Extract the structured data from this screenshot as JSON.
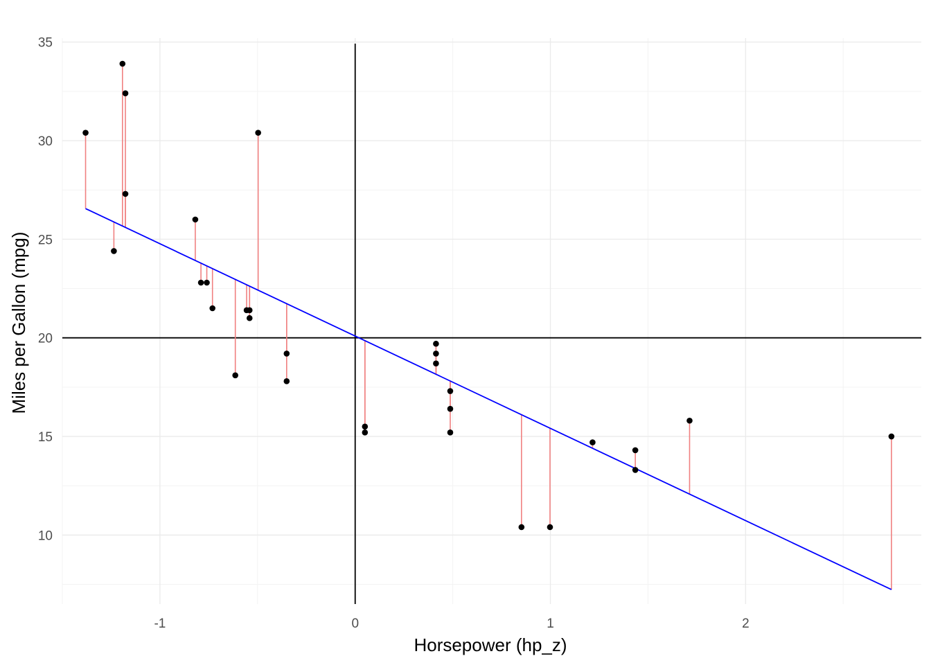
{
  "chart_data": {
    "type": "scatter",
    "xlabel": "Horsepower (hp_z)",
    "ylabel": "Miles per Gallon (mpg)",
    "xlim": [
      -1.5,
      2.9
    ],
    "ylim": [
      6.5,
      35.2
    ],
    "x_ticks": [
      -1,
      0,
      1,
      2
    ],
    "x_tick_labels": [
      "-1",
      "0",
      "1",
      "2"
    ],
    "y_ticks": [
      10,
      15,
      20,
      25,
      30,
      35
    ],
    "y_tick_labels": [
      "10",
      "15",
      "20",
      "25",
      "30",
      "35"
    ],
    "x_minor_ticks": [
      -1.5,
      -0.5,
      0.5,
      1.5,
      2.5
    ],
    "y_minor_ticks": [
      7.5,
      12.5,
      17.5,
      22.5,
      27.5,
      32.5
    ],
    "grid": true,
    "reference_lines": {
      "vertical_x": 0,
      "horizontal_y": 20
    },
    "regression": {
      "intercept": 20.09,
      "slope": -4.68,
      "x_range": [
        -1.381,
        2.747
      ]
    },
    "colors": {
      "points": "#000000",
      "regression_line": "#0000ff",
      "residual_lines": "#f08080",
      "reference_lines": "#000000"
    },
    "points": [
      {
        "x": -1.381,
        "y": 30.4
      },
      {
        "x": -1.236,
        "y": 24.4
      },
      {
        "x": -1.192,
        "y": 33.9
      },
      {
        "x": -1.177,
        "y": 32.4
      },
      {
        "x": -1.177,
        "y": 27.3
      },
      {
        "x": -0.819,
        "y": 26.0
      },
      {
        "x": -0.79,
        "y": 22.8
      },
      {
        "x": -0.76,
        "y": 22.8
      },
      {
        "x": -0.731,
        "y": 21.5
      },
      {
        "x": -0.614,
        "y": 18.1
      },
      {
        "x": -0.556,
        "y": 21.4
      },
      {
        "x": -0.541,
        "y": 21.4
      },
      {
        "x": -0.541,
        "y": 21.0
      },
      {
        "x": -0.497,
        "y": 30.4
      },
      {
        "x": -0.351,
        "y": 19.2
      },
      {
        "x": -0.351,
        "y": 17.8
      },
      {
        "x": 0.05,
        "y": 15.5
      },
      {
        "x": 0.05,
        "y": 15.2
      },
      {
        "x": 0.414,
        "y": 19.7
      },
      {
        "x": 0.414,
        "y": 19.2
      },
      {
        "x": 0.414,
        "y": 18.7
      },
      {
        "x": 0.487,
        "y": 17.3
      },
      {
        "x": 0.487,
        "y": 16.4
      },
      {
        "x": 0.487,
        "y": 15.2
      },
      {
        "x": 0.852,
        "y": 10.4
      },
      {
        "x": 0.998,
        "y": 10.4
      },
      {
        "x": 1.216,
        "y": 14.7
      },
      {
        "x": 1.435,
        "y": 14.3
      },
      {
        "x": 1.435,
        "y": 13.3
      },
      {
        "x": 1.713,
        "y": 15.8
      },
      {
        "x": 2.747,
        "y": 15.0
      }
    ]
  }
}
